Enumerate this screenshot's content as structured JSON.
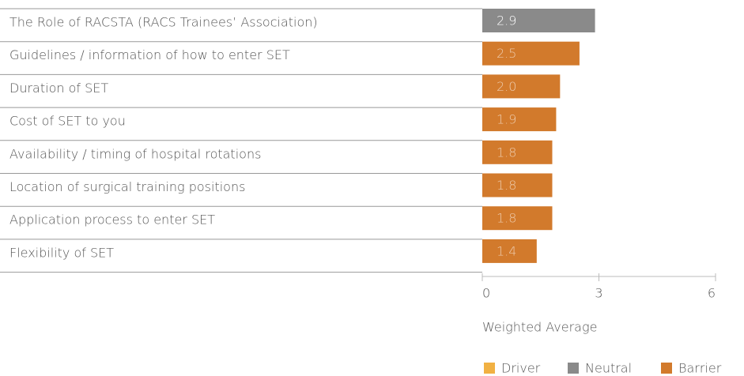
{
  "chart_data": {
    "type": "barh",
    "categories": [
      "The Role of RACSTA (RACS Trainees’ Association)",
      "Guidelines / information of how to enter SET",
      "Duration of SET",
      "Cost of SET to you",
      "Availability / timing of hospital rotations",
      "Location of surgical training positions",
      "Application process to enter SET",
      "Flexibility of SET"
    ],
    "values": [
      2.9,
      2.5,
      2.0,
      1.9,
      1.8,
      1.8,
      1.8,
      1.4
    ],
    "value_labels": [
      "2.9",
      "2.5",
      "2.0",
      "1.9",
      "1.8",
      "1.8",
      "1.8",
      "1.4"
    ],
    "colors": [
      "#8a8a8a",
      "#d27a2c",
      "#d27a2c",
      "#d27a2c",
      "#d27a2c",
      "#d27a2c",
      "#d27a2c",
      "#d27a2c"
    ],
    "xlim": [
      0,
      6
    ],
    "xticks": [
      0,
      3,
      6
    ],
    "xlabel": "Weighted Average",
    "legend": [
      {
        "name": "Driver",
        "color": "#f1b143"
      },
      {
        "name": "Neutral",
        "color": "#8a8a8a"
      },
      {
        "name": "Barrier",
        "color": "#d27a2c"
      }
    ]
  }
}
